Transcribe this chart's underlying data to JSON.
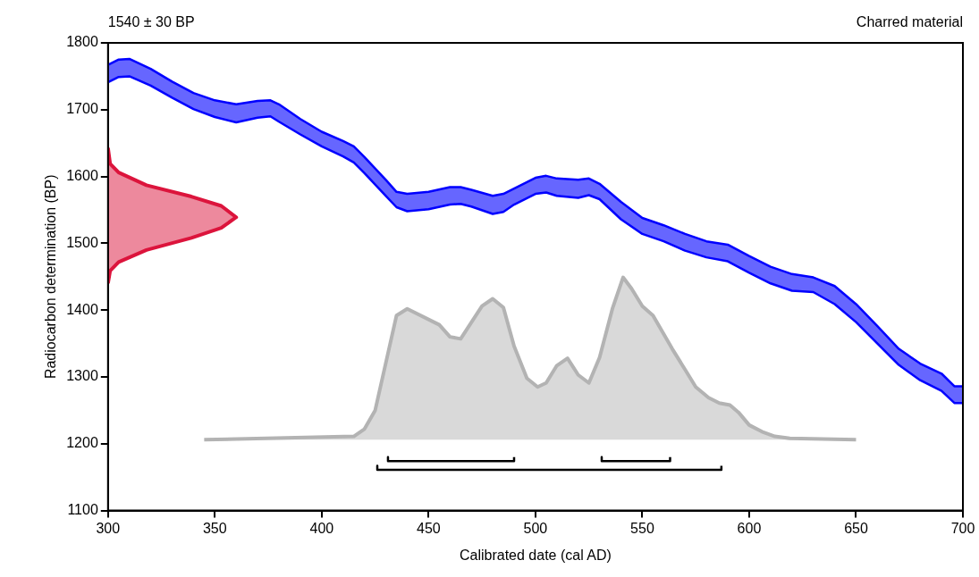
{
  "chart_data": {
    "type": "line",
    "xlabel": "Calibrated date (cal AD)",
    "ylabel": "Radiocarbon determination (BP)",
    "annotations": [
      "1540 ± 30 BP",
      "Charred material"
    ],
    "xlim": [
      300,
      700
    ],
    "xticks": [
      300,
      350,
      400,
      450,
      500,
      550,
      600,
      650,
      700
    ],
    "ylim": [
      1100,
      1800
    ],
    "yticks": [
      1100,
      1200,
      1300,
      1400,
      1500,
      1600,
      1700,
      1800
    ],
    "grid": false,
    "legend": false,
    "marker": "none",
    "series": [
      {
        "color": "#0000ff",
        "x": [
          300,
          305,
          310,
          320,
          330,
          340,
          350,
          360,
          370,
          376,
          380,
          390,
          400,
          410,
          415,
          420,
          430,
          435,
          440,
          450,
          460,
          465,
          470,
          480,
          485,
          490,
          500,
          505,
          510,
          520,
          525,
          530,
          540,
          550,
          560,
          570,
          580,
          590,
          600,
          610,
          620,
          630,
          640,
          650,
          660,
          670,
          680,
          690,
          696,
          700
        ],
        "values": [
          null,
          null,
          null,
          null,
          null,
          null,
          null,
          null,
          null,
          null,
          null,
          null,
          null,
          null,
          null,
          null,
          null,
          null,
          null,
          null,
          null,
          null,
          null,
          null,
          null,
          null,
          null,
          null,
          null,
          null,
          null,
          null,
          null,
          null,
          null,
          null,
          null,
          null,
          null,
          null,
          null,
          null,
          null,
          null,
          null,
          null,
          null,
          null,
          null,
          null
        ],
        "upper": [
          1767,
          1775,
          1776,
          1761,
          1742,
          1725,
          1714,
          1708,
          1713,
          1714,
          1708,
          1686,
          1667,
          1653,
          1645,
          1629,
          1595,
          1577,
          1574,
          1577,
          1584,
          1584,
          1580,
          1571,
          1574,
          1582,
          1598,
          1601,
          1597,
          1595,
          1597,
          1589,
          1562,
          1538,
          1527,
          1514,
          1503,
          1498,
          1481,
          1465,
          1454,
          1449,
          1436,
          1409,
          1376,
          1342,
          1320,
          1305,
          1286,
          1286
        ],
        "lower": [
          1741,
          1749,
          1750,
          1736,
          1718,
          1701,
          1689,
          1681,
          1688,
          1690,
          1682,
          1663,
          1645,
          1630,
          1621,
          1605,
          1571,
          1554,
          1548,
          1551,
          1558,
          1559,
          1555,
          1544,
          1547,
          1558,
          1574,
          1576,
          1571,
          1568,
          1572,
          1566,
          1536,
          1514,
          1503,
          1489,
          1479,
          1473,
          1456,
          1440,
          1429,
          1427,
          1409,
          1382,
          1350,
          1318,
          1295,
          1279,
          1261,
          1261
        ]
      },
      {
        "color": "#0000ff",
        "x": [
          300,
          305,
          310,
          320,
          330,
          340,
          350,
          360,
          370,
          376,
          380,
          390,
          400,
          410,
          415,
          420,
          430,
          435,
          440,
          450,
          460,
          465,
          470,
          480,
          485,
          490,
          500,
          505,
          510,
          520,
          525,
          530,
          540,
          550,
          560,
          570,
          580,
          590,
          600,
          610,
          620,
          630,
          640,
          650,
          660,
          670,
          680,
          690,
          696,
          700
        ],
        "values": [
          1767,
          1775,
          1776,
          1761,
          1742,
          1725,
          1714,
          1708,
          1713,
          1714,
          1708,
          1686,
          1667,
          1653,
          1645,
          1629,
          1595,
          1577,
          1574,
          1577,
          1584,
          1584,
          1580,
          1571,
          1574,
          1582,
          1598,
          1601,
          1597,
          1595,
          1597,
          1589,
          1562,
          1538,
          1527,
          1514,
          1503,
          1498,
          1481,
          1465,
          1454,
          1449,
          1436,
          1409,
          1376,
          1342,
          1320,
          1305,
          1286,
          1286
        ]
      },
      {
        "color": "#0000ff",
        "x": [
          300,
          305,
          310,
          320,
          330,
          340,
          350,
          360,
          370,
          376,
          380,
          390,
          400,
          410,
          415,
          420,
          430,
          435,
          440,
          450,
          460,
          465,
          470,
          480,
          485,
          490,
          500,
          505,
          510,
          520,
          525,
          530,
          540,
          550,
          560,
          570,
          580,
          590,
          600,
          610,
          620,
          630,
          640,
          650,
          660,
          670,
          680,
          690,
          696,
          700
        ],
        "values": [
          1741,
          1749,
          1750,
          1736,
          1718,
          1701,
          1689,
          1681,
          1688,
          1690,
          1682,
          1663,
          1645,
          1630,
          1621,
          1605,
          1571,
          1554,
          1548,
          1551,
          1558,
          1559,
          1555,
          1544,
          1547,
          1558,
          1574,
          1576,
          1571,
          1568,
          1572,
          1566,
          1536,
          1514,
          1503,
          1489,
          1479,
          1473,
          1456,
          1440,
          1429,
          1427,
          1409,
          1382,
          1350,
          1318,
          1295,
          1279,
          1261,
          1261
        ]
      },
      {
        "type": "area",
        "color": "#dc143c",
        "x": [
          300,
          301,
          305,
          318,
          339,
          353,
          360,
          353,
          339,
          318,
          305,
          301,
          300
        ],
        "values": [
          1643,
          1619,
          1606,
          1587,
          1570,
          1556,
          1539,
          1523,
          1508,
          1490,
          1472,
          1459,
          1440
        ]
      },
      {
        "type": "area",
        "color": "#b3b3b3",
        "x": [
          345,
          415,
          420,
          425,
          435,
          440,
          455,
          460,
          465,
          475,
          480,
          485,
          490,
          496,
          501,
          505,
          510,
          515,
          520,
          525,
          530,
          536,
          541,
          545,
          550,
          555,
          564,
          570,
          575,
          581,
          586,
          591,
          595,
          600,
          606,
          612,
          619,
          650
        ],
        "values": [
          1206,
          1211,
          1222,
          1250,
          1392,
          1402,
          1378,
          1360,
          1357,
          1406,
          1417,
          1404,
          1346,
          1298,
          1285,
          1291,
          1317,
          1328,
          1303,
          1291,
          1329,
          1402,
          1449,
          1432,
          1406,
          1392,
          1342,
          1311,
          1285,
          1269,
          1261,
          1258,
          1247,
          1228,
          1218,
          1211,
          1208,
          1206
        ]
      },
      {
        "color": "#000000",
        "x": [
          431,
          431,
          490,
          490
        ],
        "values": [
          1180,
          1174,
          1174,
          1180
        ]
      },
      {
        "color": "#000000",
        "x": [
          531,
          531,
          563,
          563
        ],
        "values": [
          1180,
          1174,
          1174,
          1180
        ]
      },
      {
        "color": "#000000",
        "x": [
          426,
          426,
          587,
          587
        ],
        "values": [
          1167,
          1161,
          1161,
          1167
        ]
      }
    ]
  }
}
